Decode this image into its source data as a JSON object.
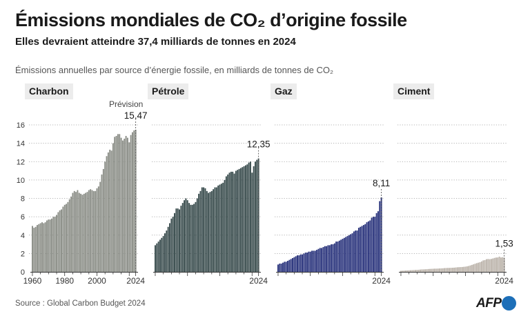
{
  "title": "Émissions mondiales de CO₂ d’origine fossile",
  "subtitle": "Elles devraient atteindre 37,4 milliards de tonnes en 2024",
  "unit_note": "Émissions annuelles par source d’énergie fossile, en milliards de tonnes de CO₂",
  "source": "Source : Global Carbon Budget 2024",
  "logo": "AFP",
  "colors": {
    "background": "#ffffff",
    "grid": "#9a9a9a",
    "text": "#1a1a1a",
    "logo_accent": "#1d6fb8"
  },
  "chart_data": {
    "type": "bar",
    "ylim": [
      0,
      16
    ],
    "yticks": [
      0,
      2,
      4,
      6,
      8,
      10,
      12,
      14,
      16
    ],
    "grid": true,
    "x": [
      1960,
      1961,
      1962,
      1963,
      1964,
      1965,
      1966,
      1967,
      1968,
      1969,
      1970,
      1971,
      1972,
      1973,
      1974,
      1975,
      1976,
      1977,
      1978,
      1979,
      1980,
      1981,
      1982,
      1983,
      1984,
      1985,
      1986,
      1987,
      1988,
      1989,
      1990,
      1991,
      1992,
      1993,
      1994,
      1995,
      1996,
      1997,
      1998,
      1999,
      2000,
      2001,
      2002,
      2003,
      2004,
      2005,
      2006,
      2007,
      2008,
      2009,
      2010,
      2011,
      2012,
      2013,
      2014,
      2015,
      2016,
      2017,
      2018,
      2019,
      2020,
      2021,
      2022,
      2023,
      2024
    ],
    "forecast_label": "Prévision",
    "panels": [
      {
        "name": "Charbon",
        "color": "#8a8d86",
        "end_label": "15,47",
        "xticks": [
          "1960",
          "1980",
          "2000",
          "2024"
        ],
        "values": [
          5.0,
          4.8,
          4.9,
          5.1,
          5.2,
          5.3,
          5.4,
          5.3,
          5.4,
          5.6,
          5.7,
          5.7,
          5.8,
          6.0,
          6.0,
          6.2,
          6.5,
          6.7,
          6.8,
          7.1,
          7.3,
          7.4,
          7.6,
          7.9,
          8.2,
          8.6,
          8.8,
          8.7,
          8.9,
          8.6,
          8.5,
          8.4,
          8.5,
          8.6,
          8.7,
          8.9,
          9.0,
          8.9,
          8.8,
          8.8,
          9.1,
          9.3,
          9.8,
          10.6,
          11.2,
          12.0,
          12.6,
          13.0,
          13.3,
          13.2,
          14.0,
          14.7,
          14.8,
          15.0,
          15.0,
          14.6,
          14.3,
          14.5,
          14.8,
          14.6,
          14.1,
          14.9,
          15.2,
          15.4,
          15.47
        ]
      },
      {
        "name": "Pétrole",
        "color": "#374a4b",
        "end_label": "12,35",
        "xticks": [
          "2024"
        ],
        "values": [
          2.9,
          3.1,
          3.3,
          3.5,
          3.7,
          3.9,
          4.2,
          4.5,
          4.9,
          5.3,
          5.8,
          6.0,
          6.4,
          6.9,
          6.9,
          6.8,
          7.2,
          7.5,
          7.8,
          8.0,
          7.8,
          7.5,
          7.3,
          7.3,
          7.4,
          7.6,
          8.0,
          8.5,
          8.8,
          9.2,
          9.2,
          9.1,
          8.8,
          8.6,
          8.7,
          8.8,
          9.0,
          9.2,
          9.2,
          9.4,
          9.5,
          9.6,
          9.7,
          10.0,
          10.4,
          10.6,
          10.8,
          10.9,
          10.9,
          10.7,
          11.0,
          11.1,
          11.2,
          11.3,
          11.4,
          11.5,
          11.6,
          11.7,
          11.9,
          12.0,
          10.8,
          11.5,
          12.0,
          12.2,
          12.35
        ]
      },
      {
        "name": "Gaz",
        "color": "#26307a",
        "end_label": "8,11",
        "xticks": [
          "2024"
        ],
        "values": [
          0.8,
          0.9,
          0.9,
          1.0,
          1.1,
          1.1,
          1.2,
          1.3,
          1.4,
          1.5,
          1.6,
          1.7,
          1.8,
          1.8,
          1.9,
          1.9,
          2.0,
          2.1,
          2.1,
          2.2,
          2.2,
          2.3,
          2.3,
          2.3,
          2.4,
          2.5,
          2.6,
          2.6,
          2.7,
          2.8,
          2.8,
          2.9,
          2.9,
          3.0,
          3.0,
          3.1,
          3.3,
          3.3,
          3.4,
          3.5,
          3.6,
          3.7,
          3.8,
          3.9,
          4.0,
          4.1,
          4.2,
          4.4,
          4.5,
          4.5,
          4.8,
          4.9,
          5.0,
          5.1,
          5.2,
          5.4,
          5.5,
          5.6,
          5.9,
          6.0,
          6.0,
          6.4,
          6.6,
          7.7,
          8.11
        ]
      },
      {
        "name": "Ciment",
        "color": "#bbb3aa",
        "end_label": "1,53",
        "xticks": [
          "2024"
        ],
        "values": [
          0.12,
          0.13,
          0.14,
          0.15,
          0.16,
          0.17,
          0.18,
          0.19,
          0.2,
          0.21,
          0.22,
          0.23,
          0.25,
          0.27,
          0.27,
          0.28,
          0.29,
          0.31,
          0.32,
          0.33,
          0.34,
          0.35,
          0.35,
          0.36,
          0.37,
          0.38,
          0.39,
          0.41,
          0.42,
          0.43,
          0.43,
          0.44,
          0.45,
          0.46,
          0.48,
          0.5,
          0.51,
          0.52,
          0.53,
          0.55,
          0.57,
          0.6,
          0.64,
          0.7,
          0.76,
          0.82,
          0.89,
          0.95,
          1.0,
          1.05,
          1.14,
          1.25,
          1.28,
          1.38,
          1.4,
          1.38,
          1.41,
          1.46,
          1.52,
          1.56,
          1.57,
          1.66,
          1.57,
          1.6,
          1.53
        ]
      }
    ]
  }
}
